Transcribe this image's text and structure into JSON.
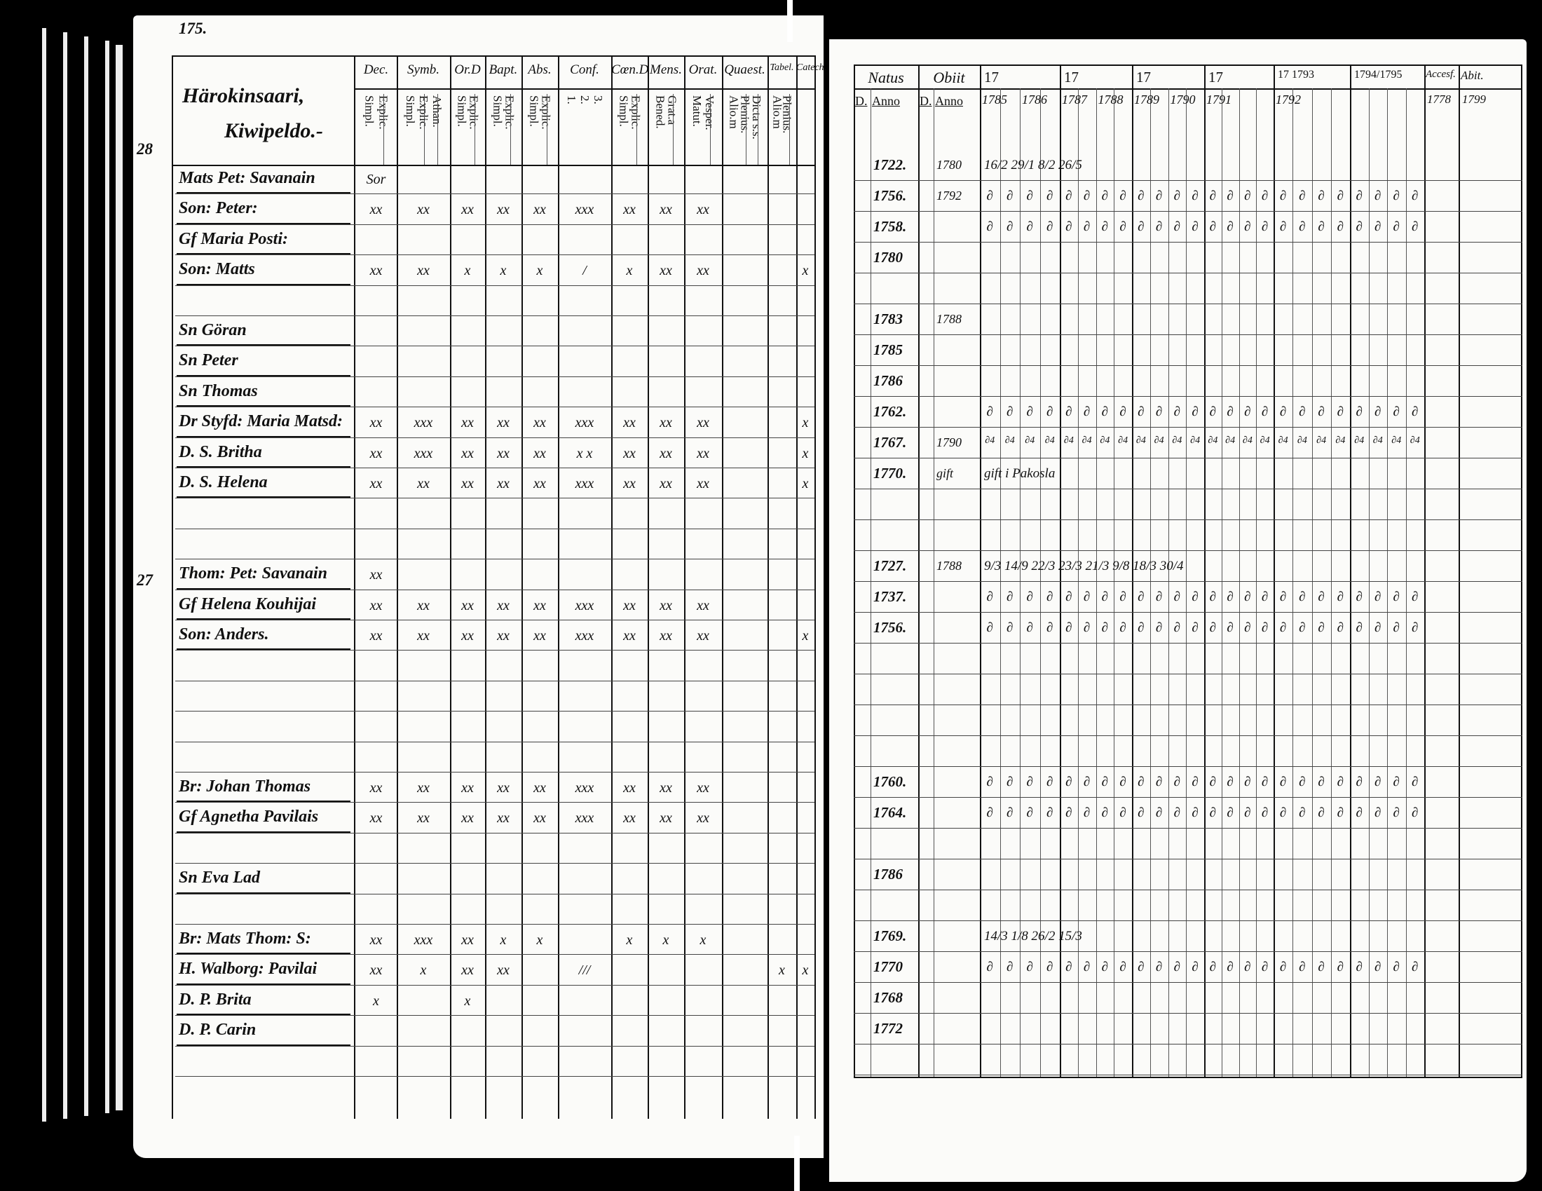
{
  "page_number": "175.",
  "margin_numbers": [
    "28",
    "27"
  ],
  "left": {
    "heading": [
      "Härokinsaari,",
      "Kiwipeldo.-"
    ],
    "columns": [
      {
        "top": "Dec.",
        "sub": [
          "Explic.",
          "Simpl."
        ]
      },
      {
        "top": "Symb.",
        "sub": [
          "Athan.",
          "Explic.",
          "Simpl."
        ]
      },
      {
        "top": "Or.D",
        "sub": [
          "Explic.",
          "Simpl."
        ]
      },
      {
        "top": "Bapt.",
        "sub": [
          "Explic.",
          "Simpl."
        ]
      },
      {
        "top": "Abs.",
        "sub": [
          "Explic.",
          "Simpl."
        ]
      },
      {
        "top": "Conf.",
        "sub": [
          "3.",
          "2.",
          "1."
        ]
      },
      {
        "top": "Cœn.D",
        "sub": [
          "Explic.",
          "Simpl."
        ]
      },
      {
        "top": "Mens.",
        "sub": [
          "Grat.a",
          "Bened."
        ]
      },
      {
        "top": "Orat.",
        "sub": [
          "Vesper.",
          "Matut."
        ]
      },
      {
        "top": "Quaest.",
        "sub": [
          "Dicta s.s.",
          "Plenius.",
          "Alio.m"
        ]
      },
      {
        "top": "Tabel.",
        "sub": [
          "Plenius.",
          "Alio.m"
        ]
      },
      {
        "top": "Catech.",
        "sub": []
      }
    ],
    "rows": [
      {
        "name": "Mats Pet: Savanain",
        "marks": [
          "Sor"
        ]
      },
      {
        "name": "Son: Peter:",
        "marks": [
          "xx",
          "xx",
          "xx",
          "xx",
          "xx",
          "xxx",
          "xx",
          "xx",
          "xx",
          "",
          "",
          ""
        ]
      },
      {
        "name": "Gf Maria Posti:",
        "marks": []
      },
      {
        "name": "Son: Matts",
        "marks": [
          "xx",
          "xx",
          "x",
          "x",
          "x",
          "/",
          "x",
          "xx",
          "xx",
          "",
          "",
          "x"
        ]
      },
      {
        "name": "",
        "marks": []
      },
      {
        "name": "Sn Göran",
        "marks": []
      },
      {
        "name": "Sn Peter",
        "marks": []
      },
      {
        "name": "Sn Thomas",
        "marks": []
      },
      {
        "name": "Dr Styfd: Maria Matsd:",
        "marks": [
          "xx",
          "xxx",
          "xx",
          "xx",
          "xx",
          "xxx",
          "xx",
          "xx",
          "xx",
          "",
          "",
          "x"
        ]
      },
      {
        "name": "D. S. Britha",
        "marks": [
          "xx",
          "xxx",
          "xx",
          "xx",
          "xx",
          "x x",
          "xx",
          "xx",
          "xx",
          "",
          "",
          "x"
        ]
      },
      {
        "name": "D. S. Helena",
        "marks": [
          "xx",
          "xx",
          "xx",
          "xx",
          "xx",
          "xxx",
          "xx",
          "xx",
          "xx",
          "",
          "",
          "x"
        ]
      },
      {
        "name": "",
        "marks": []
      },
      {
        "name": "",
        "marks": []
      },
      {
        "name": "Thom: Pet: Savanain",
        "marks": [
          "xx"
        ]
      },
      {
        "name": "Gf Helena Kouhijai",
        "marks": [
          "xx",
          "xx",
          "xx",
          "xx",
          "xx",
          "xxx",
          "xx",
          "xx",
          "xx",
          "",
          "",
          ""
        ]
      },
      {
        "name": "Son: Anders.",
        "marks": [
          "xx",
          "xx",
          "xx",
          "xx",
          "xx",
          "xxx",
          "xx",
          "xx",
          "xx",
          "",
          "",
          "x"
        ]
      },
      {
        "name": "",
        "marks": []
      },
      {
        "name": "",
        "marks": []
      },
      {
        "name": "",
        "marks": []
      },
      {
        "name": "",
        "marks": []
      },
      {
        "name": "Br: Johan Thomas",
        "marks": [
          "xx",
          "xx",
          "xx",
          "xx",
          "xx",
          "xxx",
          "xx",
          "xx",
          "xx",
          "",
          "",
          ""
        ]
      },
      {
        "name": "Gf Agnetha Pavilais",
        "marks": [
          "xx",
          "xx",
          "xx",
          "xx",
          "xx",
          "xxx",
          "xx",
          "xx",
          "xx",
          "",
          "",
          ""
        ]
      },
      {
        "name": "",
        "marks": []
      },
      {
        "name": "Sn Eva          Lad",
        "marks": []
      },
      {
        "name": "",
        "marks": []
      },
      {
        "name": "Br: Mats Thom: S:",
        "marks": [
          "xx",
          "xxx",
          "xx",
          "x",
          "x",
          "",
          "x",
          "x",
          "x",
          "",
          "",
          ""
        ]
      },
      {
        "name": "H. Walborg: Pavilai",
        "marks": [
          "xx",
          "x",
          "xx",
          "xx",
          "",
          "///",
          "",
          "",
          "",
          "",
          "x",
          "x"
        ]
      },
      {
        "name": "D. P. Brita",
        "marks": [
          "x",
          "",
          "x"
        ]
      },
      {
        "name": "D. P. Carin",
        "marks": []
      },
      {
        "name": "",
        "marks": []
      }
    ]
  },
  "right": {
    "header": {
      "natus": "Natus",
      "obiit": "Obiit",
      "d": "D.",
      "anno": "Anno",
      "groups": [
        "17",
        "17",
        "17",
        "17",
        "17 1793",
        "1794/1795"
      ],
      "years": [
        "1785",
        "1786",
        "1787",
        "1788",
        "1789",
        "1790",
        "1791",
        "",
        "1792",
        "",
        "",
        ""
      ],
      "accesf": "Accesf.",
      "accesf_year": "1778",
      "abit": "Abit.",
      "abit_year": "1799"
    },
    "rows": [
      {
        "natus": "1722.",
        "obiit": "1780",
        "marks": "16/2 29/1 8/2 26/5"
      },
      {
        "natus": "1756.",
        "obiit": "1792",
        "marks": "∂"
      },
      {
        "natus": "1758.",
        "obiit": "",
        "marks": "∂"
      },
      {
        "natus": "1780",
        "obiit": "",
        "marks": ""
      },
      {
        "natus": "",
        "obiit": "",
        "marks": ""
      },
      {
        "natus": "1783",
        "obiit": "1788",
        "marks": ""
      },
      {
        "natus": "1785",
        "obiit": "",
        "marks": ""
      },
      {
        "natus": "1786",
        "obiit": "",
        "marks": ""
      },
      {
        "natus": "1762.",
        "obiit": "",
        "marks": "∂"
      },
      {
        "natus": "1767.",
        "obiit": "1790",
        "marks": "∂4"
      },
      {
        "natus": "1770.",
        "obiit": "gift",
        "marks": "gift i Pakosla"
      },
      {
        "natus": "",
        "obiit": "",
        "marks": ""
      },
      {
        "natus": "",
        "obiit": "",
        "marks": ""
      },
      {
        "natus": "1727.",
        "obiit": "1788",
        "marks": "9/3 14/9 22/3 23/3 21/3 9/8 18/3 30/4"
      },
      {
        "natus": "1737.",
        "obiit": "",
        "marks": "∂"
      },
      {
        "natus": "1756.",
        "obiit": "",
        "marks": "∂"
      },
      {
        "natus": "",
        "obiit": "",
        "marks": ""
      },
      {
        "natus": "",
        "obiit": "",
        "marks": ""
      },
      {
        "natus": "",
        "obiit": "",
        "marks": ""
      },
      {
        "natus": "",
        "obiit": "",
        "marks": ""
      },
      {
        "natus": "1760.",
        "obiit": "",
        "marks": "∂"
      },
      {
        "natus": "1764.",
        "obiit": "",
        "marks": "∂"
      },
      {
        "natus": "",
        "obiit": "",
        "marks": ""
      },
      {
        "natus": "1786",
        "obiit": "",
        "marks": ""
      },
      {
        "natus": "",
        "obiit": "",
        "marks": ""
      },
      {
        "natus": "1769.",
        "obiit": "",
        "marks": "14/3 1/8 26/2 15/3"
      },
      {
        "natus": "1770",
        "obiit": "",
        "marks": "∂"
      },
      {
        "natus": "1768",
        "obiit": "",
        "marks": ""
      },
      {
        "natus": "1772",
        "obiit": "",
        "marks": ""
      },
      {
        "natus": "",
        "obiit": "",
        "marks": ""
      }
    ]
  },
  "colors": {
    "background": "#000000",
    "paper": "#fbfbf9",
    "ink": "#111111"
  }
}
